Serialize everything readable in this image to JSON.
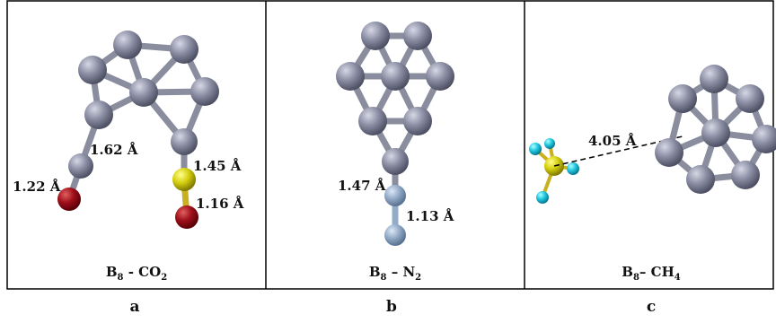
{
  "panels": [
    {
      "bond_labels": [
        "1.62 Å",
        "1.45 Å",
        "1.22 Å",
        "1.16 Å"
      ],
      "title": [
        "B",
        "8",
        " - CO",
        "2"
      ],
      "letter": "a"
    },
    {
      "bond_labels": [
        "1.47 Å",
        "1.13 Å"
      ],
      "title": [
        "B",
        "8",
        " – N",
        "2"
      ],
      "letter": "b"
    },
    {
      "bond_labels": [
        "4.05 Å"
      ],
      "title": [
        "B",
        "8",
        "– CH",
        "4"
      ],
      "letter": "c"
    }
  ]
}
